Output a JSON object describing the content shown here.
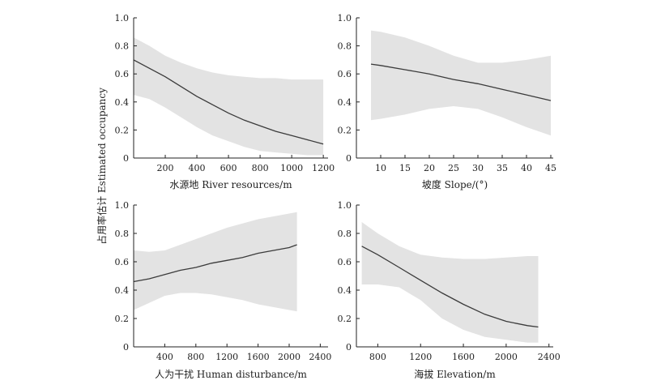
{
  "figure": {
    "shared_ylabel": "占用率估计 Estimated occupancy"
  },
  "chart_data": [
    {
      "type": "line",
      "xlabel": "水源地 River resources/m",
      "ylabel": "占用率估计 Estimated occupancy",
      "xlim": [
        0,
        1230
      ],
      "ylim": [
        0,
        1.0
      ],
      "xticks": [
        200,
        400,
        600,
        800,
        1000,
        1200
      ],
      "yticks": [
        0,
        0.2,
        0.4,
        0.6,
        0.8,
        1.0
      ],
      "series": [
        {
          "x": [
            0,
            100,
            200,
            300,
            400,
            500,
            600,
            700,
            800,
            900,
            1000,
            1100,
            1200
          ],
          "y": [
            0.7,
            0.64,
            0.58,
            0.51,
            0.44,
            0.38,
            0.32,
            0.27,
            0.23,
            0.19,
            0.16,
            0.13,
            0.1
          ],
          "lower": [
            0.45,
            0.42,
            0.36,
            0.29,
            0.22,
            0.16,
            0.12,
            0.08,
            0.05,
            0.04,
            0.03,
            0.02,
            0.02
          ],
          "upper": [
            0.86,
            0.8,
            0.73,
            0.68,
            0.64,
            0.61,
            0.59,
            0.58,
            0.57,
            0.57,
            0.56,
            0.56,
            0.56
          ]
        }
      ]
    },
    {
      "type": "line",
      "xlabel": "坡度 Slope/(°)",
      "ylabel": "",
      "xlim": [
        5,
        45.5
      ],
      "ylim": [
        0,
        1.0
      ],
      "xticks": [
        10,
        15,
        20,
        25,
        30,
        35,
        40,
        45
      ],
      "yticks": [
        0,
        0.2,
        0.4,
        0.6,
        0.8,
        1.0
      ],
      "series": [
        {
          "x": [
            8,
            10,
            15,
            20,
            25,
            30,
            35,
            40,
            45
          ],
          "y": [
            0.67,
            0.66,
            0.63,
            0.6,
            0.56,
            0.53,
            0.49,
            0.45,
            0.41
          ],
          "lower": [
            0.27,
            0.28,
            0.31,
            0.35,
            0.37,
            0.35,
            0.29,
            0.22,
            0.16
          ],
          "upper": [
            0.91,
            0.9,
            0.86,
            0.8,
            0.73,
            0.68,
            0.68,
            0.7,
            0.73
          ]
        }
      ]
    },
    {
      "type": "line",
      "xlabel": "人为干扰 Human disturbance/m",
      "ylabel": "",
      "xlim": [
        0,
        2500
      ],
      "ylim": [
        0,
        1.0
      ],
      "xticks": [
        400,
        800,
        1200,
        1600,
        2000,
        2400
      ],
      "yticks": [
        0,
        0.2,
        0.4,
        0.6,
        0.8,
        1.0
      ],
      "series": [
        {
          "x": [
            0,
            200,
            400,
            600,
            800,
            1000,
            1200,
            1400,
            1600,
            1800,
            2000,
            2100
          ],
          "y": [
            0.46,
            0.48,
            0.51,
            0.54,
            0.56,
            0.59,
            0.61,
            0.63,
            0.66,
            0.68,
            0.7,
            0.72
          ],
          "lower": [
            0.26,
            0.31,
            0.36,
            0.38,
            0.38,
            0.37,
            0.35,
            0.33,
            0.3,
            0.28,
            0.26,
            0.25
          ],
          "upper": [
            0.68,
            0.67,
            0.68,
            0.72,
            0.76,
            0.8,
            0.84,
            0.87,
            0.9,
            0.92,
            0.94,
            0.95
          ]
        }
      ]
    },
    {
      "type": "line",
      "xlabel": "海拔 Elevation/m",
      "ylabel": "",
      "xlim": [
        600,
        2440
      ],
      "ylim": [
        0,
        1.0
      ],
      "xticks": [
        800,
        1200,
        1600,
        2000,
        2400
      ],
      "yticks": [
        0,
        0.2,
        0.4,
        0.6,
        0.8,
        1.0
      ],
      "series": [
        {
          "x": [
            650,
            800,
            1000,
            1200,
            1400,
            1600,
            1800,
            2000,
            2200,
            2300
          ],
          "y": [
            0.71,
            0.65,
            0.56,
            0.47,
            0.38,
            0.3,
            0.23,
            0.18,
            0.15,
            0.14
          ],
          "lower": [
            0.44,
            0.44,
            0.42,
            0.33,
            0.2,
            0.12,
            0.07,
            0.05,
            0.03,
            0.03
          ],
          "upper": [
            0.88,
            0.8,
            0.71,
            0.65,
            0.63,
            0.62,
            0.62,
            0.63,
            0.64,
            0.64
          ]
        }
      ]
    }
  ]
}
